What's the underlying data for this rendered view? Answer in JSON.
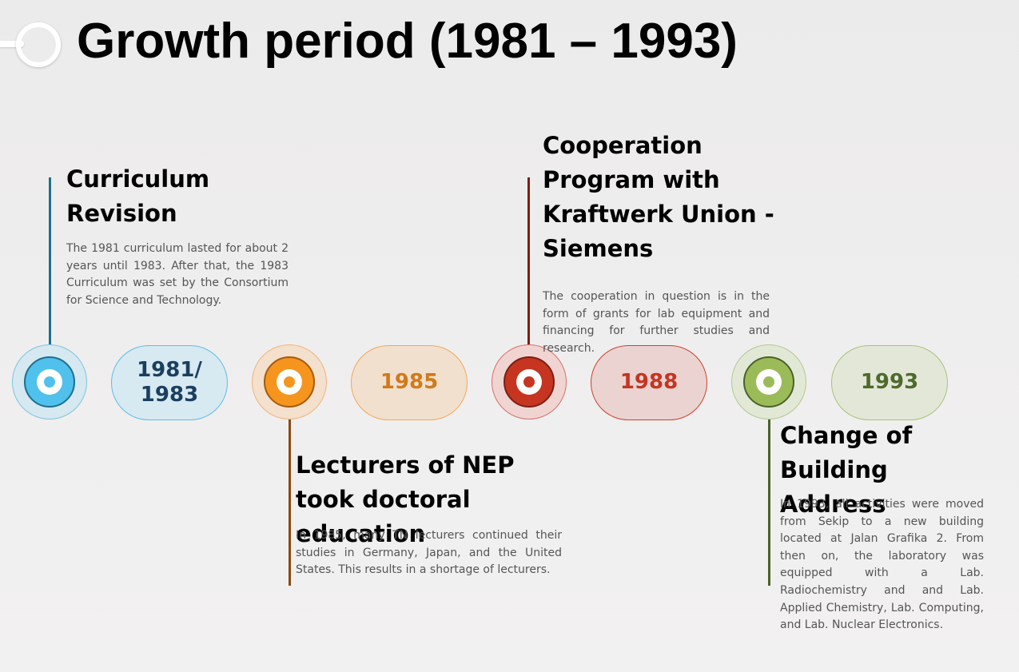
{
  "title": "Growth period (1981 – 1993)",
  "colors": {
    "blue": "#4fc1ec",
    "orange": "#f5951e",
    "red": "#c53520",
    "green": "#9bbb59"
  },
  "events": [
    {
      "year": "1981/\n1983",
      "heading": "Curriculum Revision",
      "description": "The 1981 curriculum lasted for about 2 years until 1983. After that, the 1983 Curriculum was set by the Consortium for Science and Technology."
    },
    {
      "year": "1985",
      "heading": "Lecturers of NEP took doctoral education",
      "description": "In 1985, many TN lecturers continued their studies in Germany, Japan, and the United States. This results in a shortage of lecturers."
    },
    {
      "year": "1988",
      "heading": "Cooperation Program with Kraftwerk Union - Siemens",
      "description": "The cooperation in question is in the form of grants for lab equipment and financing for further studies and research."
    },
    {
      "year": "1993",
      "heading": "Change of Building Address",
      "description": "In 1993, all activities were moved from Sekip to a new building located at Jalan Grafika 2. From then on, the laboratory was equipped with a Lab. Radiochemistry and and Lab. Applied Chemistry, Lab. Computing, and Lab. Nuclear Electronics."
    }
  ]
}
